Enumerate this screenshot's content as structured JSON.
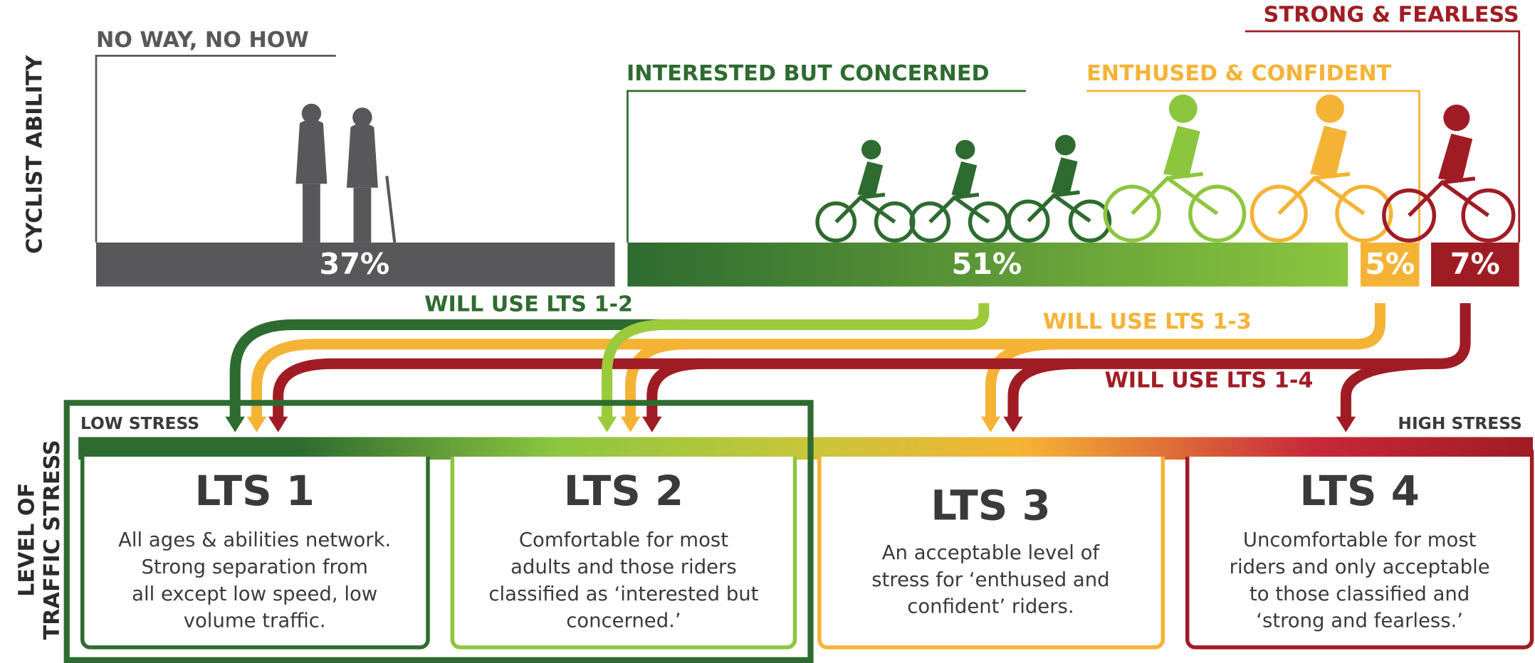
{
  "axis_labels": {
    "ability": "CYCLIST ABILITY",
    "stress": [
      "LEVEL OF",
      "TRAFFIC STRESS"
    ]
  },
  "cyclist_types": [
    {
      "label": "NO WAY, NO HOW",
      "share": "37%"
    },
    {
      "label": "INTERESTED BUT CONCERNED",
      "share": "51%"
    },
    {
      "label": "ENTHUSED & CONFIDENT",
      "share": "5%"
    },
    {
      "label": "STRONG & FEARLESS",
      "share": "7%"
    }
  ],
  "arrow_labels": [
    "WILL USE LTS 1-2",
    "WILL USE LTS 1-3",
    "WILL USE LTS 1-4"
  ],
  "stress_scale": {
    "low": "LOW STRESS",
    "high": "HIGH STRESS"
  },
  "lts": [
    {
      "title": "LTS 1",
      "description": [
        "All ages & abilities network.",
        "Strong separation from",
        "all except low speed, low",
        "volume traffic."
      ]
    },
    {
      "title": "LTS 2",
      "description": [
        "Comfortable for most",
        "adults and those riders",
        "classified as ‘interested but",
        "concerned.’"
      ]
    },
    {
      "title": "LTS 3",
      "description": [
        "An acceptable level of",
        "stress for ‘enthused and",
        "confident’ riders."
      ]
    },
    {
      "title": "LTS 4",
      "description": [
        "Uncomfortable for most",
        "riders and only acceptable",
        "to those classified and",
        "‘strong and fearless.’"
      ]
    }
  ]
}
